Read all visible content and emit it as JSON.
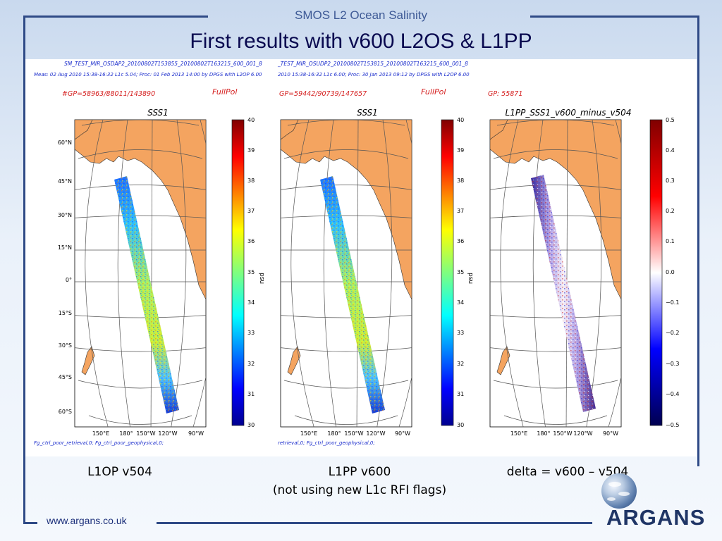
{
  "header": {
    "title": "SMOS L2 Ocean Salinity"
  },
  "slide": {
    "title": "First results with v600 L2OS & L1PP"
  },
  "panels": [
    {
      "file": "SM_TEST_MIR_OSDAP2_20100802T153855_20100802T163215_600_001_8",
      "meta": "Meas: 02 Aug 2010 15:38-16:32 L1c 5.04; Proc: 01 Feb 2013 14:00 by DPGS with L2OP 6.00",
      "gp": "#GP=58963/88011/143890",
      "pol": "FullPol",
      "map_title": "SSS1",
      "bottom_note": "Fg_ctrl_poor_retrieval,0; Fg_ctrl_poor_geophysical,0;",
      "caption": "L1OP v504"
    },
    {
      "file": "_TEST_MIR_OSUDP2_20100802T153815_20100802T163215_600_001_8",
      "meta": "2010 15:38-16:32 L1c 6.00; Proc: 30 Jan 2013 09:12 by DPGS with L2OP 6.00",
      "gp": "GP=59442/90739/147657",
      "pol": "FullPol",
      "map_title": "SSS1",
      "bottom_note": "retrieval,0; Fg_ctrl_poor_geophysical,0;",
      "caption": "L1PP v600",
      "caption2": "(not using new L1c RFI flags)"
    },
    {
      "gp": "GP: 55871",
      "map_title": "L1PP_SSS1_v600_minus_v504",
      "caption": "delta = v600 – v504"
    }
  ],
  "lat_labels": [
    "60°N",
    "45°N",
    "30°N",
    "15°N",
    "0°",
    "15°S",
    "30°S",
    "45°S",
    "60°S"
  ],
  "lon_labels": [
    "150°E",
    "180°",
    "150°W",
    "120°W",
    "90°W"
  ],
  "lon_labels_short": [
    "150°E",
    "180°",
    "150°W",
    "120°W",
    "90°W"
  ],
  "colorbar_sss": {
    "unit": "psu",
    "ticks": [
      "40",
      "39",
      "38",
      "37",
      "36",
      "35",
      "34",
      "33",
      "32",
      "31",
      "30"
    ]
  },
  "colorbar_delta": {
    "ticks": [
      "0.5",
      "0.4",
      "0.3",
      "0.2",
      "0.1",
      "0.0",
      "−0.1",
      "−0.2",
      "−0.3",
      "−0.4",
      "−0.5"
    ]
  },
  "colors": {
    "frame": "#2f4a86",
    "land": "#f4a460",
    "pol_text": "#d52020",
    "blue_text": "#1a2ccc"
  },
  "footer": {
    "url": "www.argans.co.uk",
    "logo": "ARGANS"
  }
}
